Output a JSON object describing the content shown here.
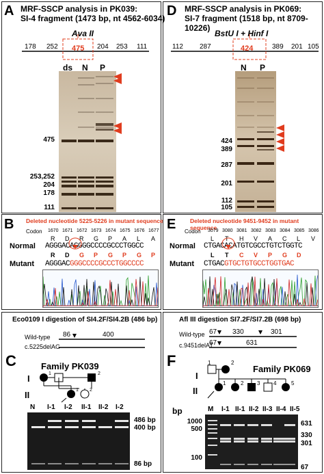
{
  "panelA": {
    "letter": "A",
    "title_line1": "MRF-SSCP analysis in PK039:",
    "title_line2": "SI-4 fragment (1473 bp, nt 4562-6034)",
    "enzyme": "Ava II",
    "map_sizes": [
      "178",
      "252",
      "475",
      "204",
      "253",
      "111"
    ],
    "lanes": [
      "ds",
      "N",
      "P"
    ],
    "markers": [
      "475",
      "253,252",
      "204",
      "178",
      "111"
    ]
  },
  "panelB": {
    "letter": "B",
    "deleted_note": "Deleted nucleotide 5225-5226 in mutant sequence",
    "codon_label": "Codon",
    "codons": [
      "1670",
      "1671",
      "1672",
      "1673",
      "1674",
      "1675",
      "1676",
      "1677"
    ],
    "normal_label": "Normal",
    "normal_aa": [
      "R",
      "D",
      "R",
      "G",
      "P",
      "A",
      "L",
      "A"
    ],
    "normal_seq": "AGGGACAGGGGCCCCGCCCTGGCC",
    "mutant_label": "Mutant",
    "mutant_aa": [
      "R",
      "D",
      "G",
      "P",
      "G",
      "P",
      "G",
      "P"
    ],
    "mutant_seq_black": "AGGGAC",
    "mutant_seq_red": "GGGCCCCGCCCTGGCCCC"
  },
  "panelC": {
    "letter": "C",
    "title": "Eco0109 I digestion of SI4.2F/SI4.2B (486 bp)",
    "wildtype_label": "Wild-type",
    "wildtype_a": "86",
    "wildtype_b": "400",
    "mutant_label": "c.5225delAG",
    "family": "Family PK039",
    "gen1": "I",
    "gen2": "II",
    "lanes": [
      "N",
      "I-1",
      "I-2",
      "II-1",
      "II-2",
      "I-2"
    ],
    "bands": [
      "486 bp",
      "400 bp",
      "86 bp"
    ]
  },
  "panelD": {
    "letter": "D",
    "title_line1": "MRF-SSCP analysis in PK069:",
    "title_line2": "SI-7 fragment (1518 bp, nt 8709-10226)",
    "enzyme": "BstU I + Hinf I",
    "map_sizes": [
      "112",
      "287",
      "424",
      "389",
      "201",
      "105"
    ],
    "lanes": [
      "N",
      "P"
    ],
    "markers": [
      "424",
      "389",
      "287",
      "201",
      "112",
      "105"
    ]
  },
  "panelE": {
    "letter": "E",
    "deleted_note": "Deleted nucleotide 9451-9452 in mutant sequence",
    "codon_label": "Codon",
    "codons": [
      "3079",
      "3080",
      "3081",
      "3082",
      "3083",
      "3084",
      "3085",
      "3086"
    ],
    "normal_label": "Normal",
    "normal_aa": [
      "L",
      "T",
      "H",
      "V",
      "A",
      "C",
      "L",
      "V"
    ],
    "normal_seq": "CTGACACATGTCGCCTGTCTGGTC",
    "mutant_label": "Mutant",
    "mutant_aa": [
      "L",
      "T",
      "C",
      "V",
      "P",
      "G",
      "D"
    ],
    "mutant_seq_black": "CTGAC",
    "mutant_seq_red": "GTGCTGTGCCTGGTGAC"
  },
  "panelF": {
    "letter": "F",
    "title": "Afl III digestion SI7.2F/SI7.2B (698 bp)",
    "wildtype_label": "Wild-type",
    "wildtype_a": "67",
    "wildtype_b": "330",
    "wildtype_c": "301",
    "mutant_label": "c.9451delAT",
    "mutant_a": "67",
    "mutant_b": "631",
    "family": "Family PK069",
    "gen1": "I",
    "gen2": "II",
    "ind_1": "1",
    "ind_2": "2",
    "ind_3": "3",
    "ind_4": "4",
    "ind_5": "5",
    "bp": "bp",
    "lanes": [
      "M",
      "I-1",
      "II-1",
      "II-2",
      "II-3",
      "II-4",
      "II-5"
    ],
    "ladder": [
      "1000",
      "500",
      "100"
    ],
    "bands": [
      "631",
      "330",
      "301",
      "67"
    ]
  },
  "colors": {
    "red": "#e03c1e",
    "frame": "#222222"
  }
}
